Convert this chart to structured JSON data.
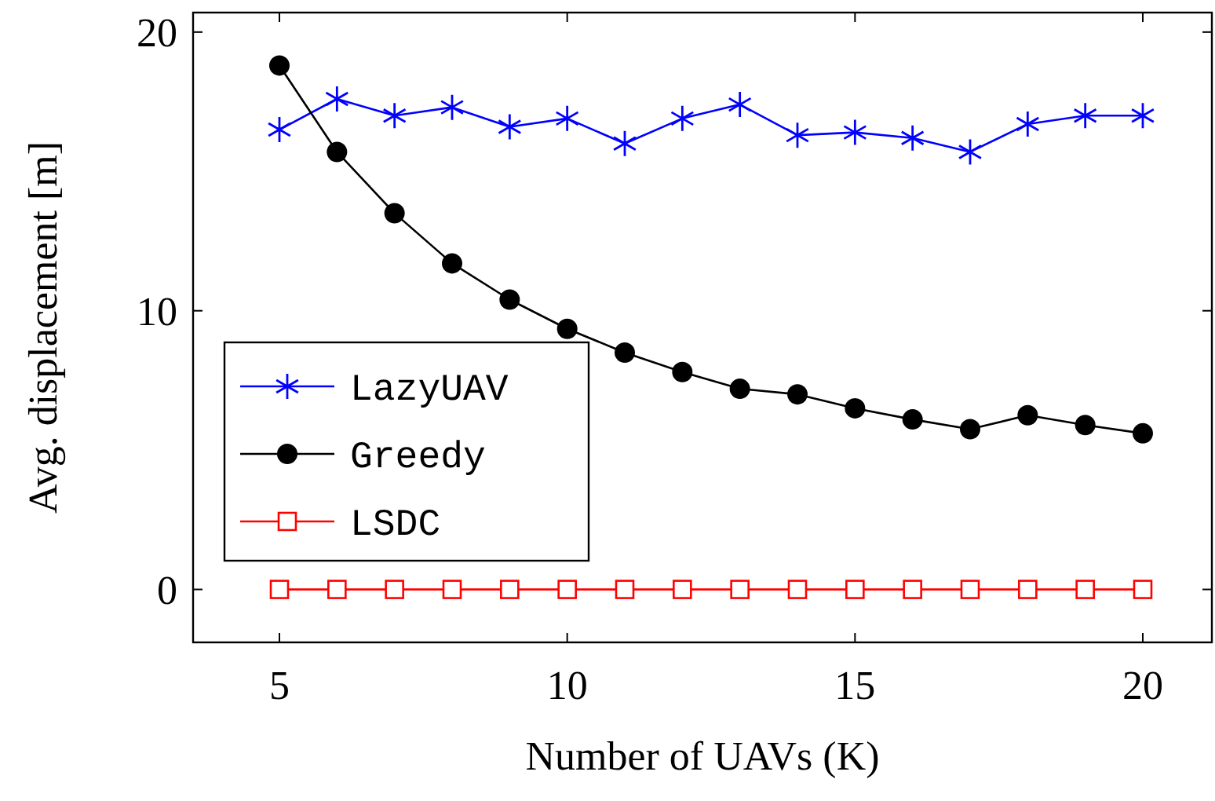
{
  "chart_data": {
    "type": "line",
    "xlabel": "Number of UAVs (K)",
    "ylabel": "Avg. displacement [m]",
    "x": [
      5,
      6,
      7,
      8,
      9,
      10,
      11,
      12,
      13,
      14,
      15,
      16,
      17,
      18,
      19,
      20
    ],
    "xlim": [
      3.5,
      21.2
    ],
    "xticks": [
      5,
      10,
      15,
      20
    ],
    "ylim": [
      -1.9,
      20.7
    ],
    "yticks": [
      0,
      10,
      20
    ],
    "legend": "left",
    "grid": false,
    "line_style": "solid",
    "series": [
      {
        "name": "LazyUAV",
        "color": "#0000ff",
        "marker": "cross",
        "values": [
          16.5,
          17.6,
          17.0,
          17.3,
          16.6,
          16.9,
          16.0,
          16.9,
          17.4,
          16.3,
          16.4,
          16.2,
          15.7,
          16.7,
          17.0,
          17.0
        ]
      },
      {
        "name": "Greedy",
        "color": "#000000",
        "marker": "circle",
        "values": [
          18.8,
          15.7,
          13.5,
          11.7,
          10.4,
          9.35,
          8.5,
          7.8,
          7.2,
          7.0,
          6.5,
          6.1,
          5.75,
          6.25,
          5.9,
          5.6
        ]
      },
      {
        "name": "LSDC",
        "color": "#ff0000",
        "marker": "square",
        "values": [
          0,
          0,
          0,
          0,
          0,
          0,
          0,
          0,
          0,
          0,
          0,
          0,
          0,
          0,
          0,
          0
        ]
      }
    ]
  }
}
